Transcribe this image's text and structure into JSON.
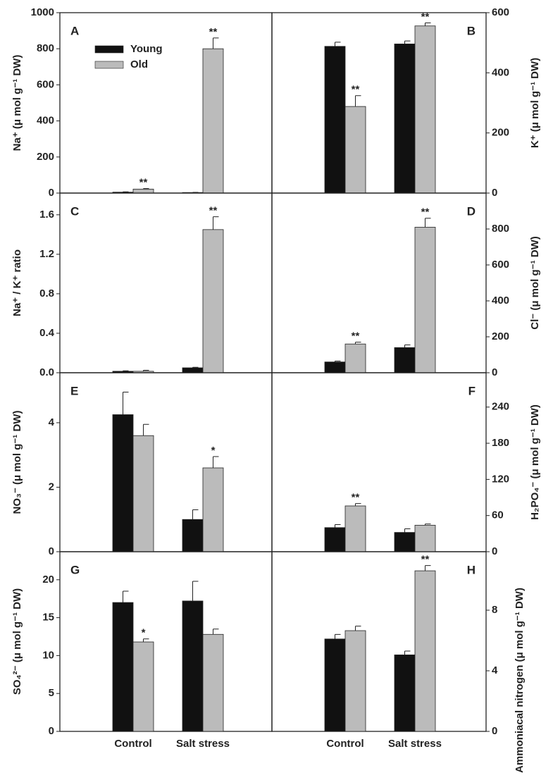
{
  "chart_data": [
    {
      "type": "bar",
      "panel": "A",
      "ylabel": "Na⁺ (μ mol g⁻¹ DW)",
      "axis_side": "left",
      "legend": "upper left",
      "ylim": [
        0,
        1000
      ],
      "yticks": [
        0,
        200,
        400,
        600,
        800,
        1000
      ],
      "series": [
        {
          "name": "Young",
          "color": "#111111",
          "values": [
            5,
            3
          ],
          "errors": [
            2,
            1
          ]
        },
        {
          "name": "Old",
          "color": "#bbbbbb",
          "values": [
            22,
            800
          ],
          "errors": [
            3,
            60
          ],
          "significance": [
            "**",
            "**"
          ]
        }
      ]
    },
    {
      "type": "bar",
      "panel": "B",
      "ylabel": "K⁺ (μ mol g⁻¹ DW)",
      "axis_side": "right",
      "ylim": [
        0,
        600
      ],
      "yticks": [
        0,
        200,
        400,
        600
      ],
      "series": [
        {
          "color": "#111111",
          "values": [
            488,
            496
          ],
          "errors": [
            14,
            10
          ]
        },
        {
          "color": "#bbbbbb",
          "values": [
            288,
            556
          ],
          "errors": [
            36,
            10
          ],
          "significance": [
            "**",
            "**"
          ]
        }
      ]
    },
    {
      "type": "bar",
      "panel": "C",
      "ylabel": "Na⁺ / K⁺ ratio",
      "axis_side": "left",
      "ylim": [
        0,
        1.82
      ],
      "yticks": [
        {
          "value": 0,
          "label": "0.0"
        },
        0.4,
        0.8,
        1.2,
        1.6
      ],
      "series": [
        {
          "color": "#111111",
          "values": [
            0.015,
            0.05
          ],
          "errors": [
            0.005,
            0.005
          ]
        },
        {
          "color": "#bbbbbb",
          "values": [
            0.015,
            1.45
          ],
          "errors": [
            0.01,
            0.13
          ],
          "significance": [
            null,
            "**"
          ]
        }
      ]
    },
    {
      "type": "bar",
      "panel": "D",
      "ylabel": "Cl⁻ (μ mol g⁻¹ DW)",
      "axis_side": "right",
      "ylim": [
        0,
        1000
      ],
      "yticks": [
        0,
        200,
        400,
        600,
        800
      ],
      "series": [
        {
          "color": "#111111",
          "values": [
            60,
            140
          ],
          "errors": [
            5,
            15
          ]
        },
        {
          "color": "#bbbbbb",
          "values": [
            160,
            810
          ],
          "errors": [
            10,
            50
          ],
          "significance": [
            "**",
            "**"
          ]
        }
      ]
    },
    {
      "type": "bar",
      "panel": "E",
      "ylabel": "NO₃⁻ (μ mol g⁻¹ DW)",
      "axis_side": "left",
      "ylim": [
        0,
        5.55
      ],
      "yticks": [
        0,
        2,
        4
      ],
      "series": [
        {
          "color": "#111111",
          "values": [
            4.25,
            1.0
          ],
          "errors": [
            0.7,
            0.3
          ]
        },
        {
          "color": "#bbbbbb",
          "values": [
            3.6,
            2.6
          ],
          "errors": [
            0.35,
            0.35
          ],
          "significance": [
            null,
            "*"
          ]
        }
      ]
    },
    {
      "type": "bar",
      "panel": "F",
      "ylabel": "H₂PO₄⁻ (μ mol g⁻¹ DW)",
      "axis_side": "right",
      "ylim": [
        0,
        297
      ],
      "yticks": [
        0,
        60,
        120,
        180,
        240
      ],
      "series": [
        {
          "color": "#111111",
          "values": [
            40,
            32
          ],
          "errors": [
            5,
            6
          ]
        },
        {
          "color": "#bbbbbb",
          "values": [
            76,
            44
          ],
          "errors": [
            4,
            2
          ],
          "significance": [
            "**",
            null
          ]
        }
      ]
    },
    {
      "type": "bar",
      "panel": "G",
      "ylabel": "SO₄²⁻ (μ mol g⁻¹ DW)",
      "axis_side": "left",
      "categories": [
        "Control",
        "Salt stress"
      ],
      "ylim": [
        0,
        23.7
      ],
      "yticks": [
        0,
        5,
        10,
        15,
        20
      ],
      "series": [
        {
          "color": "#111111",
          "values": [
            17,
            17.2
          ],
          "errors": [
            1.5,
            2.6
          ]
        },
        {
          "color": "#bbbbbb",
          "values": [
            11.8,
            12.8
          ],
          "errors": [
            0.4,
            0.7
          ],
          "significance": [
            "*",
            null
          ]
        }
      ]
    },
    {
      "type": "bar",
      "panel": "H",
      "ylabel": "Ammoniacal nitrogen  (μ mol g⁻¹ DW)",
      "axis_side": "right",
      "categories": [
        "Control",
        "Salt stress"
      ],
      "ylim": [
        0,
        11.86
      ],
      "yticks": [
        0,
        4,
        8
      ],
      "series": [
        {
          "color": "#111111",
          "values": [
            6.1,
            5.05
          ],
          "errors": [
            0.3,
            0.25
          ]
        },
        {
          "color": "#bbbbbb",
          "values": [
            6.65,
            10.6
          ],
          "errors": [
            0.3,
            0.35
          ],
          "significance": [
            null,
            "**"
          ]
        }
      ]
    }
  ]
}
